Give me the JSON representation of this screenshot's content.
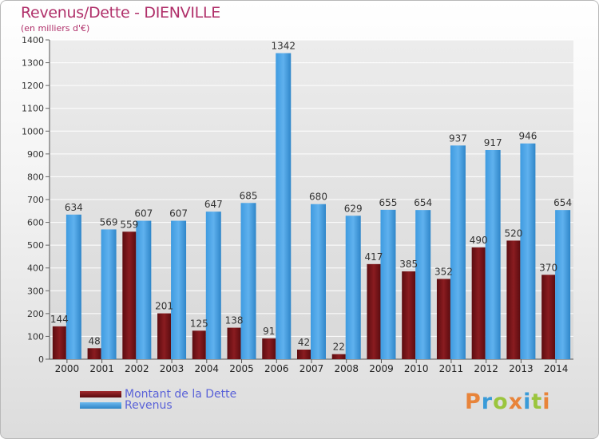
{
  "title": "Revenus/Dette - DIENVILLE",
  "subtitle": "(en milliers d'€)",
  "logo": {
    "text": "Proxiti",
    "colors": [
      "#e8843a",
      "#3a9bd8",
      "#9bc53d",
      "#e8843a",
      "#3a9bd8",
      "#9bc53d",
      "#e8843a"
    ]
  },
  "legend": [
    {
      "label": "Montant de la Dette",
      "color": "#7a1418"
    },
    {
      "label": "Revenus",
      "color": "#3b97db"
    }
  ],
  "chart_data": {
    "type": "bar",
    "categories": [
      "2000",
      "2001",
      "2002",
      "2003",
      "2004",
      "2005",
      "2006",
      "2007",
      "2008",
      "2009",
      "2010",
      "2011",
      "2012",
      "2013",
      "2014"
    ],
    "series": [
      {
        "name": "Montant de la Dette",
        "color": "#7a1418",
        "values": [
          144,
          48,
          559,
          201,
          125,
          138,
          91,
          42,
          22,
          417,
          385,
          352,
          490,
          520,
          370
        ]
      },
      {
        "name": "Revenus",
        "color": "#3b97db",
        "values": [
          634,
          569,
          607,
          607,
          647,
          685,
          1342,
          680,
          629,
          655,
          654,
          937,
          917,
          946,
          654
        ]
      }
    ],
    "ylim": [
      0,
      1400
    ],
    "yticks": [
      0,
      100,
      200,
      300,
      400,
      500,
      600,
      700,
      800,
      900,
      1000,
      1100,
      1200,
      1300,
      1400
    ],
    "grid": true,
    "legend_position": "bottom-left"
  }
}
